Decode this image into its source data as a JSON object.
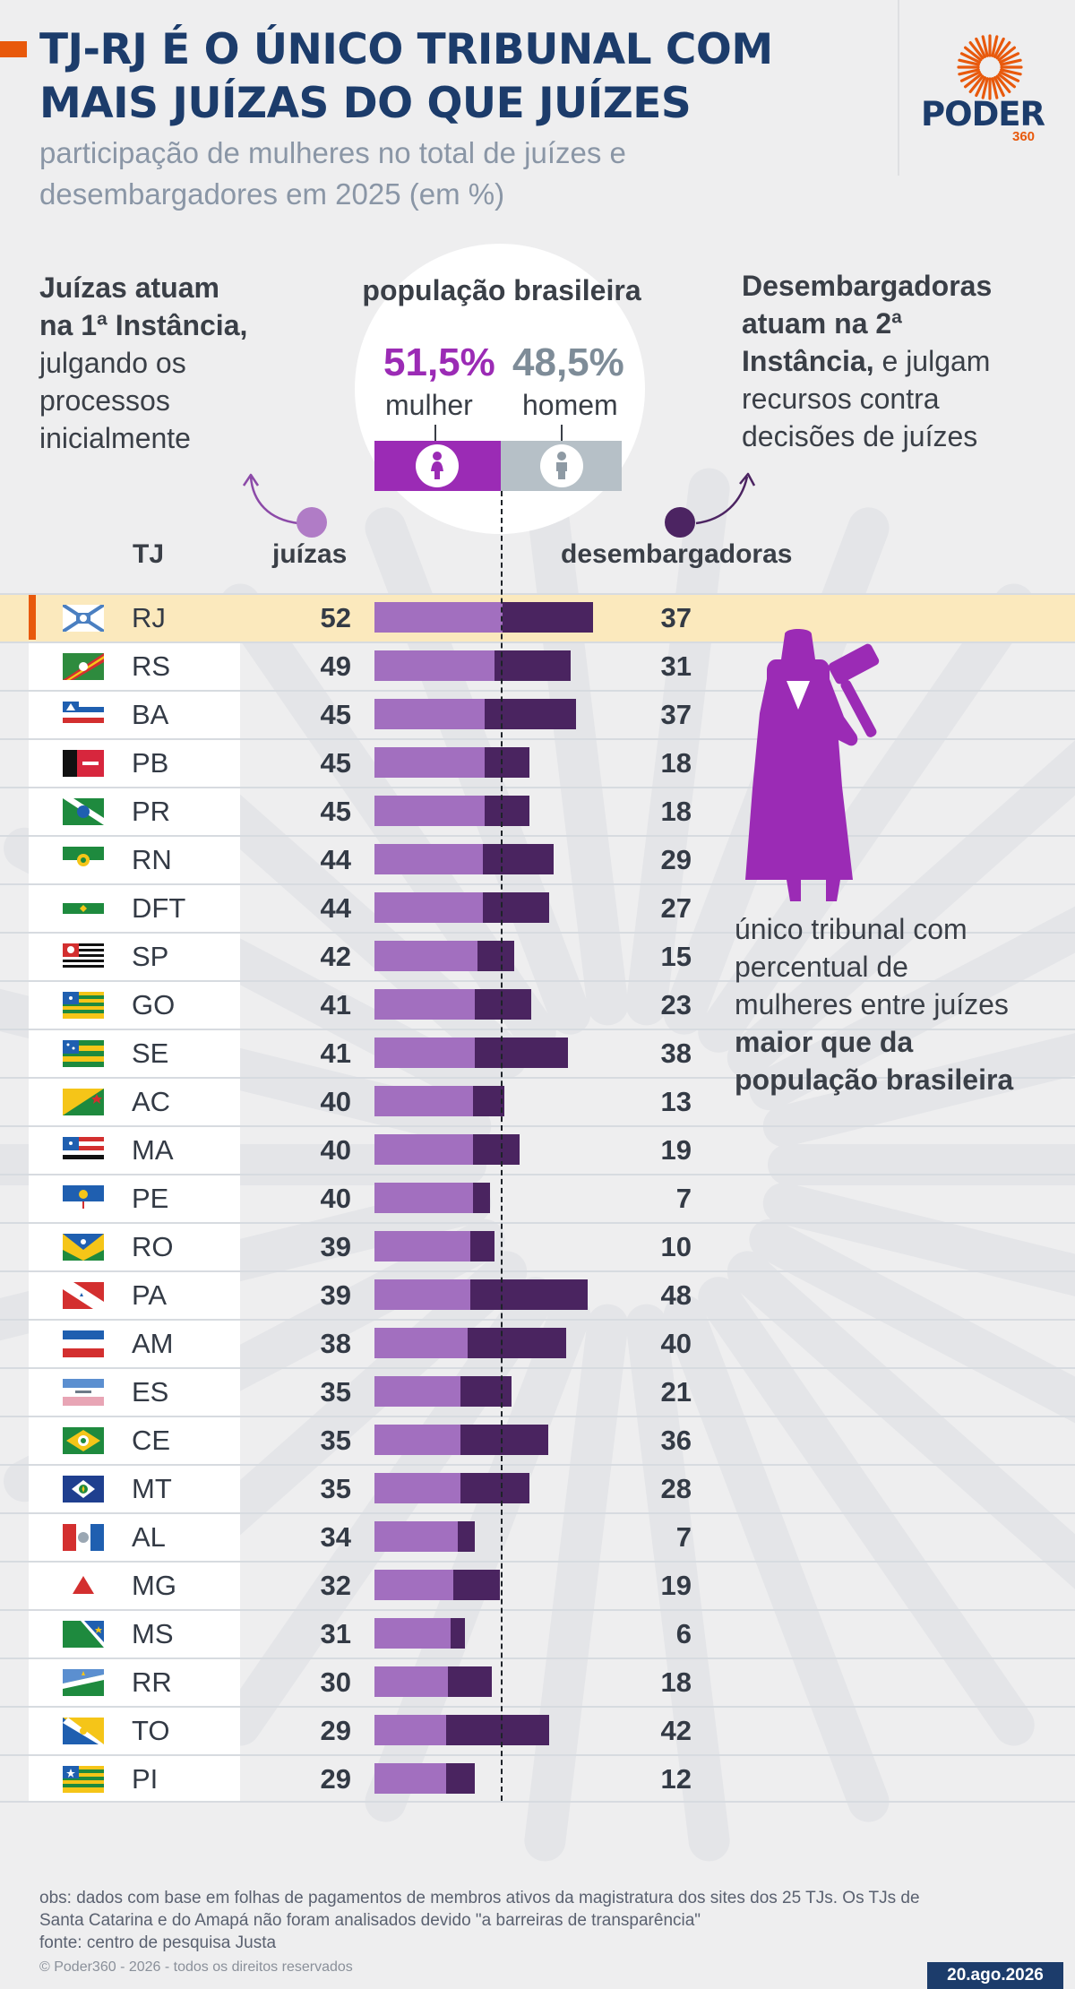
{
  "title_lines": [
    "TJ-RJ É O ÚNICO TRIBUNAL COM",
    "MAIS JUÍZAS DO QUE JUÍZES"
  ],
  "subtitle_lines": [
    "participação de mulheres no total de juízes e",
    "desembargadores em 2025 (em %)"
  ],
  "logo": {
    "name": "PODER",
    "number": "360"
  },
  "annotation_left": {
    "bold_lines": [
      "Juízas atuam",
      "na 1ª Instância,"
    ],
    "lines": [
      "julgando os",
      "processos",
      "inicialmente"
    ]
  },
  "annotation_right": {
    "bold_lines": [
      "Desembargadoras",
      "atuam na 2ª"
    ],
    "bold_inline": "Instância,",
    "inline_rest": " e julgam",
    "lines": [
      "recursos contra",
      "decisões de juízes"
    ]
  },
  "population": {
    "title": "população brasileira",
    "women_pct": "51,5%",
    "women_label": "mulher",
    "men_pct": "48,5%",
    "men_label": "homem",
    "women_value": 51.5,
    "men_value": 48.5,
    "women_color": "#9b2bb5",
    "men_color": "#b6c0c7",
    "icon_women": "woman-icon",
    "icon_men": "man-icon"
  },
  "rj_note": {
    "lines": [
      "único tribunal com",
      "percentual de",
      "mulheres entre juízes"
    ],
    "bold_lines": [
      "maior que da",
      "população brasileira"
    ]
  },
  "chart_data": {
    "type": "bar",
    "columns": {
      "tj": "TJ",
      "judges": "juízas",
      "appellate": "desembargadoras"
    },
    "reference_line": 51.5,
    "highlight": "RJ",
    "colors": {
      "judges": "#a26fbf",
      "appellate": "#4a2460",
      "highlight_row": "#fbe9bd"
    },
    "categories": [
      "RJ",
      "RS",
      "BA",
      "PB",
      "PR",
      "RN",
      "DFT",
      "SP",
      "GO",
      "SE",
      "AC",
      "MA",
      "PE",
      "RO",
      "PA",
      "AM",
      "ES",
      "CE",
      "MT",
      "AL",
      "MG",
      "MS",
      "RR",
      "TO",
      "PI"
    ],
    "series": [
      {
        "name": "juízas",
        "values": [
          52,
          49,
          45,
          45,
          45,
          44,
          44,
          42,
          41,
          41,
          40,
          40,
          40,
          39,
          39,
          38,
          35,
          35,
          35,
          34,
          32,
          31,
          30,
          29,
          29
        ]
      },
      {
        "name": "desembargadoras",
        "values": [
          37,
          31,
          37,
          18,
          18,
          29,
          27,
          15,
          23,
          38,
          13,
          19,
          7,
          10,
          48,
          40,
          21,
          36,
          28,
          7,
          19,
          6,
          18,
          42,
          12
        ]
      }
    ]
  },
  "footer": {
    "obs_lines": [
      "obs: dados com base em folhas de pagamentos de membros ativos da magistratura dos sites dos 25 TJs. Os TJs de",
      "Santa Catarina e do Amapá não foram analisados devido \"a barreiras de transparência\""
    ],
    "source": "fonte: centro de pesquisa Justa",
    "copyright": "© Poder360 - 2026 - todos os direitos reservados",
    "date": "20.ago.2026"
  }
}
